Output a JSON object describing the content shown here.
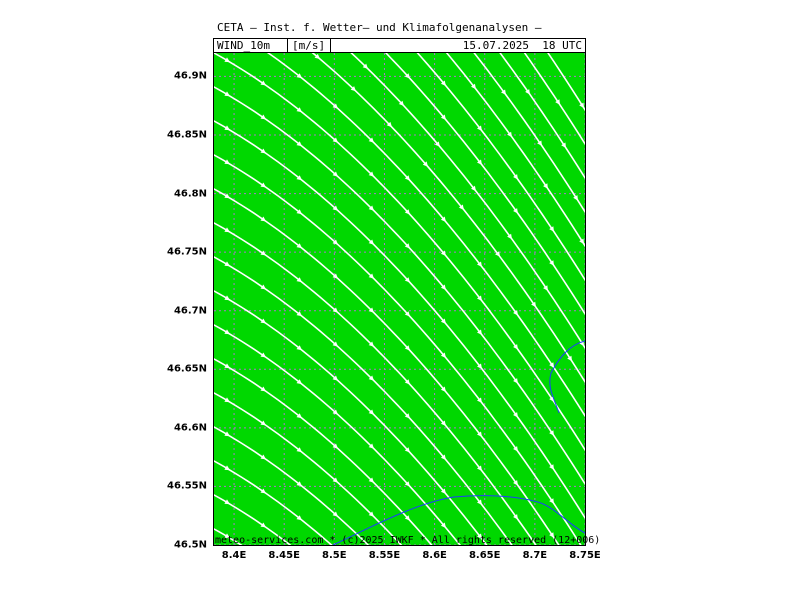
{
  "header": {
    "title": "CETA — Inst. f. Wetter— und Klimafolgenanalysen —",
    "variable": "WIND_10m",
    "unit": "[m/s]",
    "valid_time": "15.07.2025  18 UTC"
  },
  "footer": {
    "credit": "meteo-services.com * (c)2025 IWKF * All rights reserved (12+006)"
  },
  "map": {
    "field_color": "#00d800",
    "streamline_color": "#ffffff",
    "grid_color": "#b070d0",
    "coast_color": "#1e3cff",
    "lon_range": [
      8.38,
      8.75
    ],
    "lat_range": [
      46.5,
      46.92
    ],
    "x_ticks": [
      {
        "value": 8.4,
        "label": "8.4E"
      },
      {
        "value": 8.45,
        "label": "8.45E"
      },
      {
        "value": 8.5,
        "label": "8.5E"
      },
      {
        "value": 8.55,
        "label": "8.55E"
      },
      {
        "value": 8.6,
        "label": "8.6E"
      },
      {
        "value": 8.65,
        "label": "8.65E"
      },
      {
        "value": 8.7,
        "label": "8.7E"
      },
      {
        "value": 8.75,
        "label": "8.75E"
      }
    ],
    "y_ticks": [
      {
        "value": 46.5,
        "label": "46.5N"
      },
      {
        "value": 46.55,
        "label": "46.55N"
      },
      {
        "value": 46.6,
        "label": "46.6N"
      },
      {
        "value": 46.65,
        "label": "46.65N"
      },
      {
        "value": 46.7,
        "label": "46.7N"
      },
      {
        "value": 46.75,
        "label": "46.75N"
      },
      {
        "value": 46.8,
        "label": "46.8N"
      },
      {
        "value": 46.85,
        "label": "46.85N"
      },
      {
        "value": 46.9,
        "label": "46.9N"
      }
    ]
  }
}
